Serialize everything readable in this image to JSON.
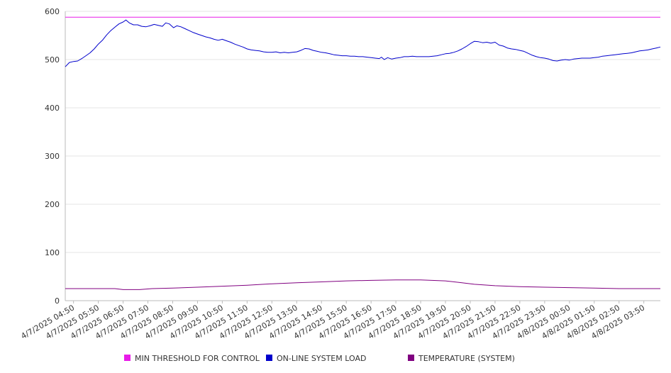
{
  "chart_data": {
    "type": "line",
    "title": "",
    "xlabel": "",
    "ylabel": "",
    "ylim": [
      0,
      600
    ],
    "yticks": [
      0,
      100,
      200,
      300,
      400,
      500,
      600
    ],
    "x_tick_labels": [
      "4/7/2025 04:50",
      "4/7/2025 05:50",
      "4/7/2025 06:50",
      "4/7/2025 07:50",
      "4/7/2025 08:50",
      "4/7/2025 09:50",
      "4/7/2025 10:50",
      "4/7/2025 11:50",
      "4/7/2025 12:50",
      "4/7/2025 13:50",
      "4/7/2025 14:50",
      "4/7/2025 15:50",
      "4/7/2025 16:50",
      "4/7/2025 17:50",
      "4/7/2025 18:50",
      "4/7/2025 19:50",
      "4/7/2025 20:50",
      "4/7/2025 21:50",
      "4/7/2025 22:50",
      "4/7/2025 23:50",
      "4/8/2025 00:50",
      "4/8/2025 01:50",
      "4/8/2025 02:50",
      "4/8/2025 03:50"
    ],
    "x_range": [
      "4/7/2025 04:30",
      "4/8/2025 04:30"
    ],
    "grid": "horizontal",
    "legend_position": "bottom",
    "series": [
      {
        "name": "MIN THRESHOLD FOR CONTROL",
        "color": "#E81CE8",
        "points": [
          [
            "4/7/2025 04:30",
            588
          ],
          [
            "4/8/2025 04:30",
            588
          ]
        ]
      },
      {
        "name": "ON-LINE SYSTEM LOAD",
        "color": "#0000CC",
        "points": [
          [
            "4/7/2025 04:30",
            485
          ],
          [
            "4/7/2025 04:40",
            494
          ],
          [
            "4/7/2025 04:50",
            496
          ],
          [
            "4/7/2025 05:00",
            497
          ],
          [
            "4/7/2025 05:10",
            502
          ],
          [
            "4/7/2025 05:20",
            508
          ],
          [
            "4/7/2025 05:30",
            514
          ],
          [
            "4/7/2025 05:40",
            522
          ],
          [
            "4/7/2025 05:50",
            532
          ],
          [
            "4/7/2025 06:00",
            540
          ],
          [
            "4/7/2025 06:10",
            551
          ],
          [
            "4/7/2025 06:20",
            560
          ],
          [
            "4/7/2025 06:30",
            567
          ],
          [
            "4/7/2025 06:40",
            574
          ],
          [
            "4/7/2025 06:50",
            578
          ],
          [
            "4/7/2025 06:57",
            582
          ],
          [
            "4/7/2025 07:05",
            576
          ],
          [
            "4/7/2025 07:15",
            572
          ],
          [
            "4/7/2025 07:25",
            572
          ],
          [
            "4/7/2025 07:35",
            569
          ],
          [
            "4/7/2025 07:45",
            568
          ],
          [
            "4/7/2025 07:55",
            570
          ],
          [
            "4/7/2025 08:05",
            573
          ],
          [
            "4/7/2025 08:15",
            571
          ],
          [
            "4/7/2025 08:25",
            569
          ],
          [
            "4/7/2025 08:33",
            576
          ],
          [
            "4/7/2025 08:42",
            574
          ],
          [
            "4/7/2025 08:52",
            566
          ],
          [
            "4/7/2025 09:00",
            570
          ],
          [
            "4/7/2025 09:10",
            568
          ],
          [
            "4/7/2025 09:20",
            564
          ],
          [
            "4/7/2025 09:30",
            560
          ],
          [
            "4/7/2025 09:40",
            556
          ],
          [
            "4/7/2025 09:50",
            553
          ],
          [
            "4/7/2025 10:00",
            550
          ],
          [
            "4/7/2025 10:10",
            547
          ],
          [
            "4/7/2025 10:20",
            545
          ],
          [
            "4/7/2025 10:30",
            542
          ],
          [
            "4/7/2025 10:40",
            540
          ],
          [
            "4/7/2025 10:50",
            542
          ],
          [
            "4/7/2025 11:00",
            539
          ],
          [
            "4/7/2025 11:10",
            536
          ],
          [
            "4/7/2025 11:20",
            532
          ],
          [
            "4/7/2025 11:30",
            529
          ],
          [
            "4/7/2025 11:40",
            526
          ],
          [
            "4/7/2025 11:50",
            522
          ],
          [
            "4/7/2025 12:00",
            520
          ],
          [
            "4/7/2025 12:10",
            519
          ],
          [
            "4/7/2025 12:20",
            518
          ],
          [
            "4/7/2025 12:30",
            516
          ],
          [
            "4/7/2025 12:40",
            515
          ],
          [
            "4/7/2025 12:50",
            515
          ],
          [
            "4/7/2025 13:00",
            516
          ],
          [
            "4/7/2025 13:10",
            514
          ],
          [
            "4/7/2025 13:20",
            515
          ],
          [
            "4/7/2025 13:30",
            514
          ],
          [
            "4/7/2025 13:40",
            515
          ],
          [
            "4/7/2025 13:50",
            516
          ],
          [
            "4/7/2025 14:00",
            519
          ],
          [
            "4/7/2025 14:10",
            523
          ],
          [
            "4/7/2025 14:20",
            522
          ],
          [
            "4/7/2025 14:30",
            519
          ],
          [
            "4/7/2025 14:40",
            517
          ],
          [
            "4/7/2025 14:50",
            515
          ],
          [
            "4/7/2025 15:00",
            514
          ],
          [
            "4/7/2025 15:10",
            512
          ],
          [
            "4/7/2025 15:20",
            510
          ],
          [
            "4/7/2025 15:30",
            509
          ],
          [
            "4/7/2025 15:40",
            508
          ],
          [
            "4/7/2025 15:50",
            508
          ],
          [
            "4/7/2025 16:00",
            507
          ],
          [
            "4/7/2025 16:10",
            507
          ],
          [
            "4/7/2025 16:20",
            506
          ],
          [
            "4/7/2025 16:30",
            506
          ],
          [
            "4/7/2025 16:40",
            505
          ],
          [
            "4/7/2025 16:50",
            504
          ],
          [
            "4/7/2025 17:00",
            503
          ],
          [
            "4/7/2025 17:10",
            502
          ],
          [
            "4/7/2025 17:15",
            505
          ],
          [
            "4/7/2025 17:22",
            500
          ],
          [
            "4/7/2025 17:30",
            504
          ],
          [
            "4/7/2025 17:40",
            501
          ],
          [
            "4/7/2025 17:50",
            503
          ],
          [
            "4/7/2025 18:00",
            504
          ],
          [
            "4/7/2025 18:10",
            506
          ],
          [
            "4/7/2025 18:20",
            506
          ],
          [
            "4/7/2025 18:30",
            507
          ],
          [
            "4/7/2025 18:40",
            506
          ],
          [
            "4/7/2025 18:50",
            506
          ],
          [
            "4/7/2025 19:00",
            506
          ],
          [
            "4/7/2025 19:10",
            506
          ],
          [
            "4/7/2025 19:20",
            507
          ],
          [
            "4/7/2025 19:30",
            508
          ],
          [
            "4/7/2025 19:40",
            510
          ],
          [
            "4/7/2025 19:50",
            512
          ],
          [
            "4/7/2025 20:00",
            513
          ],
          [
            "4/7/2025 20:10",
            515
          ],
          [
            "4/7/2025 20:20",
            518
          ],
          [
            "4/7/2025 20:30",
            522
          ],
          [
            "4/7/2025 20:40",
            527
          ],
          [
            "4/7/2025 20:50",
            533
          ],
          [
            "4/7/2025 21:00",
            538
          ],
          [
            "4/7/2025 21:10",
            537
          ],
          [
            "4/7/2025 21:20",
            535
          ],
          [
            "4/7/2025 21:30",
            536
          ],
          [
            "4/7/2025 21:40",
            534
          ],
          [
            "4/7/2025 21:50",
            536
          ],
          [
            "4/7/2025 22:00",
            530
          ],
          [
            "4/7/2025 22:10",
            528
          ],
          [
            "4/7/2025 22:20",
            524
          ],
          [
            "4/7/2025 22:30",
            522
          ],
          [
            "4/7/2025 22:40",
            521
          ],
          [
            "4/7/2025 22:50",
            519
          ],
          [
            "4/7/2025 23:00",
            517
          ],
          [
            "4/7/2025 23:10",
            513
          ],
          [
            "4/7/2025 23:20",
            509
          ],
          [
            "4/7/2025 23:30",
            506
          ],
          [
            "4/7/2025 23:40",
            504
          ],
          [
            "4/7/2025 23:50",
            503
          ],
          [
            "4/8/2025 00:00",
            501
          ],
          [
            "4/8/2025 00:10",
            498
          ],
          [
            "4/8/2025 00:20",
            497
          ],
          [
            "4/8/2025 00:30",
            499
          ],
          [
            "4/8/2025 00:40",
            500
          ],
          [
            "4/8/2025 00:50",
            499
          ],
          [
            "4/8/2025 01:00",
            501
          ],
          [
            "4/8/2025 01:10",
            502
          ],
          [
            "4/8/2025 01:20",
            503
          ],
          [
            "4/8/2025 01:30",
            503
          ],
          [
            "4/8/2025 01:40",
            503
          ],
          [
            "4/8/2025 01:50",
            504
          ],
          [
            "4/8/2025 02:00",
            505
          ],
          [
            "4/8/2025 02:10",
            507
          ],
          [
            "4/8/2025 02:20",
            508
          ],
          [
            "4/8/2025 02:30",
            509
          ],
          [
            "4/8/2025 02:40",
            510
          ],
          [
            "4/8/2025 02:50",
            511
          ],
          [
            "4/8/2025 03:00",
            512
          ],
          [
            "4/8/2025 03:10",
            513
          ],
          [
            "4/8/2025 03:20",
            514
          ],
          [
            "4/8/2025 03:30",
            516
          ],
          [
            "4/8/2025 03:40",
            518
          ],
          [
            "4/8/2025 03:50",
            519
          ],
          [
            "4/8/2025 04:00",
            520
          ],
          [
            "4/8/2025 04:10",
            522
          ],
          [
            "4/8/2025 04:20",
            524
          ],
          [
            "4/8/2025 04:30",
            526
          ]
        ]
      },
      {
        "name": "TEMPERATURE (SYSTEM)",
        "color": "#800080",
        "points": [
          [
            "4/7/2025 04:30",
            25
          ],
          [
            "4/7/2025 05:30",
            25
          ],
          [
            "4/7/2025 06:30",
            25
          ],
          [
            "4/7/2025 06:50",
            23
          ],
          [
            "4/7/2025 07:30",
            23
          ],
          [
            "4/7/2025 08:00",
            25
          ],
          [
            "4/7/2025 08:50",
            26
          ],
          [
            "4/7/2025 09:50",
            28
          ],
          [
            "4/7/2025 10:50",
            30
          ],
          [
            "4/7/2025 11:50",
            32
          ],
          [
            "4/7/2025 12:50",
            35
          ],
          [
            "4/7/2025 13:50",
            37
          ],
          [
            "4/7/2025 14:50",
            39
          ],
          [
            "4/7/2025 15:50",
            41
          ],
          [
            "4/7/2025 16:50",
            42
          ],
          [
            "4/7/2025 17:50",
            43
          ],
          [
            "4/7/2025 18:50",
            43
          ],
          [
            "4/7/2025 19:50",
            41
          ],
          [
            "4/7/2025 20:30",
            37
          ],
          [
            "4/7/2025 21:00",
            34
          ],
          [
            "4/7/2025 21:50",
            31
          ],
          [
            "4/7/2025 22:50",
            29
          ],
          [
            "4/7/2025 23:50",
            28
          ],
          [
            "4/8/2025 00:50",
            27
          ],
          [
            "4/8/2025 01:50",
            26
          ],
          [
            "4/8/2025 02:50",
            25
          ],
          [
            "4/8/2025 03:50",
            25
          ],
          [
            "4/8/2025 04:30",
            25
          ]
        ]
      }
    ]
  }
}
